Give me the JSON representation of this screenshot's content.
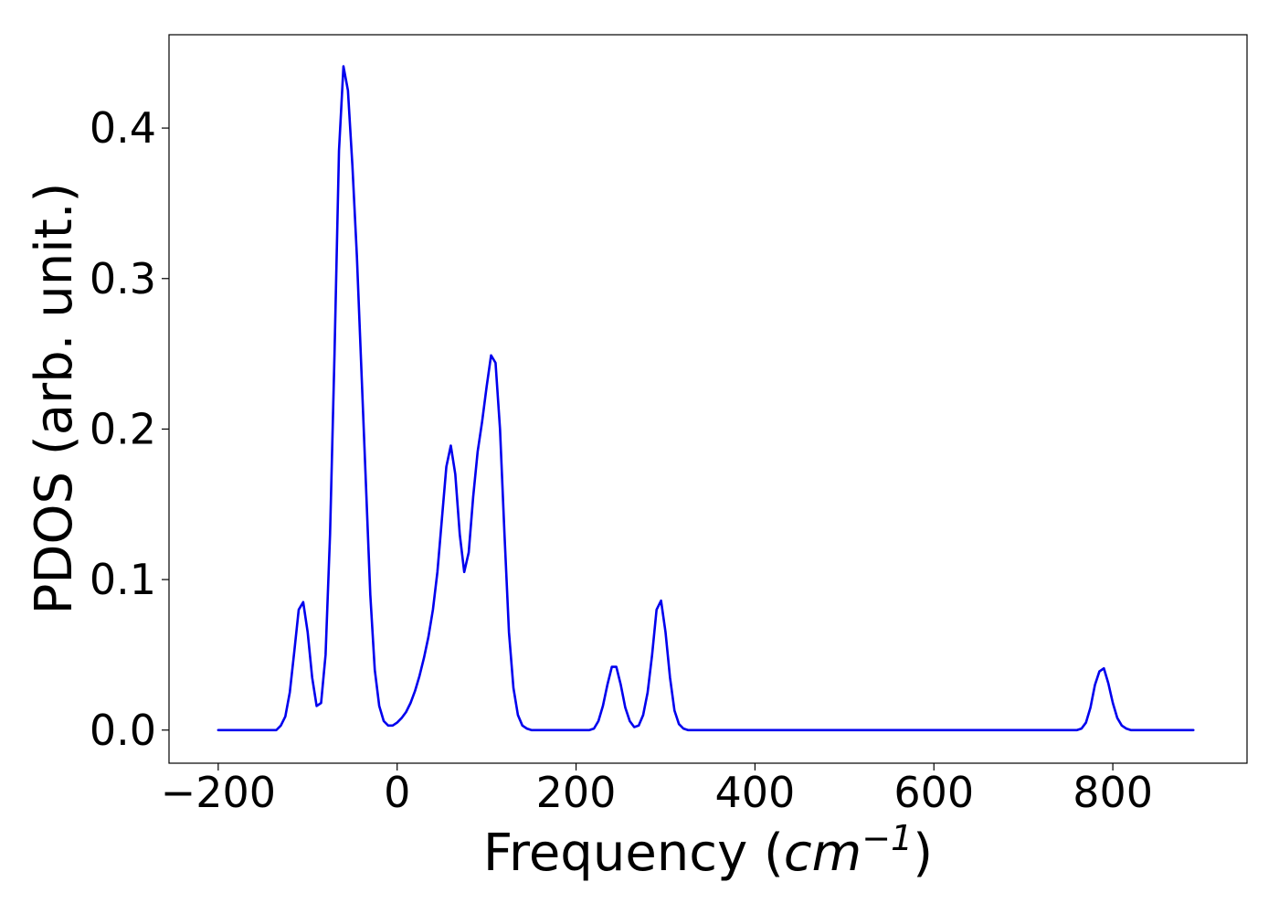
{
  "chart_data": {
    "type": "line",
    "title": "",
    "xlabel": {
      "prefix": "Frequency (",
      "unit_base": "cm",
      "unit_exponent": "−1",
      "suffix": ")"
    },
    "ylabel": "PDOS (arb. unit.)",
    "xlim": [
      -255,
      950
    ],
    "ylim": [
      -0.022,
      0.462
    ],
    "x_ticks": [
      -200,
      0,
      200,
      400,
      600,
      800
    ],
    "x_tick_labels": [
      "−200",
      "0",
      "200",
      "400",
      "600",
      "800"
    ],
    "y_ticks": [
      0.0,
      0.1,
      0.2,
      0.3,
      0.4
    ],
    "y_tick_labels": [
      "0.0",
      "0.1",
      "0.2",
      "0.3",
      "0.4"
    ],
    "grid": false,
    "legend": "none",
    "series": [
      {
        "color": "#0000ee",
        "x": [
          -200,
          -190,
          -180,
          -170,
          -160,
          -150,
          -140,
          -135,
          -130,
          -125,
          -120,
          -115,
          -110,
          -105,
          -100,
          -95,
          -90,
          -85,
          -80,
          -75,
          -70,
          -65,
          -60,
          -55,
          -50,
          -45,
          -40,
          -35,
          -30,
          -25,
          -20,
          -15,
          -10,
          -5,
          0,
          5,
          10,
          15,
          20,
          25,
          30,
          35,
          40,
          45,
          50,
          55,
          60,
          65,
          70,
          75,
          80,
          85,
          90,
          95,
          100,
          105,
          110,
          115,
          120,
          125,
          130,
          135,
          140,
          145,
          150,
          155,
          160,
          165,
          170,
          175,
          180,
          190,
          200,
          210,
          215,
          220,
          225,
          230,
          235,
          240,
          245,
          250,
          255,
          260,
          265,
          270,
          275,
          280,
          285,
          290,
          295,
          300,
          305,
          310,
          315,
          320,
          325,
          330,
          335,
          340,
          360,
          400,
          500,
          600,
          700,
          750,
          760,
          765,
          770,
          775,
          780,
          785,
          790,
          795,
          800,
          805,
          810,
          815,
          820,
          825,
          830,
          850,
          890
        ],
        "y": [
          0.0,
          0.0,
          0.0,
          0.0,
          0.0,
          0.0,
          0.0,
          0.0,
          0.003,
          0.009,
          0.025,
          0.052,
          0.08,
          0.085,
          0.065,
          0.035,
          0.016,
          0.018,
          0.05,
          0.13,
          0.25,
          0.385,
          0.441,
          0.425,
          0.375,
          0.315,
          0.24,
          0.165,
          0.09,
          0.04,
          0.016,
          0.006,
          0.003,
          0.003,
          0.005,
          0.008,
          0.012,
          0.018,
          0.026,
          0.036,
          0.048,
          0.062,
          0.08,
          0.105,
          0.14,
          0.175,
          0.189,
          0.17,
          0.13,
          0.105,
          0.118,
          0.155,
          0.185,
          0.205,
          0.228,
          0.249,
          0.244,
          0.2,
          0.13,
          0.065,
          0.028,
          0.01,
          0.003,
          0.001,
          0.0,
          0.0,
          0.0,
          0.0,
          0.0,
          0.0,
          0.0,
          0.0,
          0.0,
          0.0,
          0.0,
          0.001,
          0.006,
          0.016,
          0.03,
          0.042,
          0.042,
          0.03,
          0.015,
          0.006,
          0.002,
          0.003,
          0.01,
          0.025,
          0.05,
          0.08,
          0.086,
          0.065,
          0.035,
          0.013,
          0.004,
          0.001,
          0.0,
          0.0,
          0.0,
          0.0,
          0.0,
          0.0,
          0.0,
          0.0,
          0.0,
          0.0,
          0.0,
          0.001,
          0.005,
          0.015,
          0.03,
          0.039,
          0.041,
          0.031,
          0.018,
          0.008,
          0.003,
          0.001,
          0.0,
          0.0,
          0.0,
          0.0,
          0.0
        ]
      }
    ]
  }
}
